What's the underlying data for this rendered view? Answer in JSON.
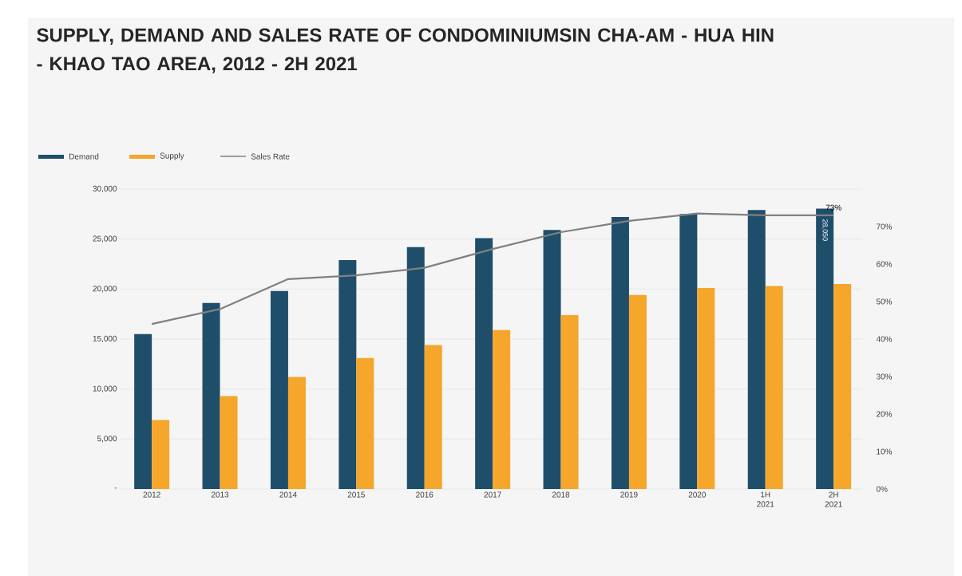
{
  "chart_data": {
    "type": "bar",
    "title": "SUPPLY, DEMAND AND SALES RATE OF CONDOMINIUMSIN CHA-AM - HUA HIN - KHAO TAO AREA, 2012 - 2H 2021",
    "categories": [
      "2012",
      "2013",
      "2014",
      "2015",
      "2016",
      "2017",
      "2018",
      "2019",
      "2020",
      "1H 2021",
      "2H 2021"
    ],
    "series": [
      {
        "name": "Demand",
        "color": "#1f4e6b",
        "values": [
          15500,
          18600,
          19800,
          22900,
          24200,
          25100,
          25900,
          27200,
          27500,
          27900,
          28050
        ],
        "value_labels": [
          null,
          null,
          null,
          null,
          null,
          null,
          null,
          null,
          null,
          null,
          "28,050"
        ]
      },
      {
        "name": "Supply",
        "color": "#f5a62b",
        "values": [
          6900,
          9300,
          11200,
          13100,
          14400,
          15900,
          17400,
          19400,
          20100,
          20300,
          20500
        ]
      },
      {
        "name": "Sales Rate",
        "type": "line",
        "axis": "y2",
        "color": "#808080",
        "values": [
          44,
          48,
          56,
          57,
          59,
          64,
          68.5,
          71.5,
          73.5,
          73,
          73
        ],
        "value_labels": [
          null,
          null,
          null,
          null,
          null,
          null,
          null,
          null,
          null,
          null,
          "73%"
        ]
      }
    ],
    "ylim": [
      0,
      30000
    ],
    "yticks": [
      {
        "value": 0,
        "label": "-"
      },
      {
        "value": 5000,
        "label": "5,000"
      },
      {
        "value": 10000,
        "label": "10,000"
      },
      {
        "value": 15000,
        "label": "15,000"
      },
      {
        "value": 20000,
        "label": "20,000"
      },
      {
        "value": 25000,
        "label": "25,000"
      },
      {
        "value": 30000,
        "label": "30,000"
      }
    ],
    "y2lim": [
      0,
      80
    ],
    "y2ticks": [
      {
        "value": 0,
        "label": "0%"
      },
      {
        "value": 10,
        "label": "10%"
      },
      {
        "value": 20,
        "label": "20%"
      },
      {
        "value": 30,
        "label": "30%"
      },
      {
        "value": 40,
        "label": "40%"
      },
      {
        "value": 50,
        "label": "50%"
      },
      {
        "value": 60,
        "label": "60%"
      },
      {
        "value": 70,
        "label": "70%"
      }
    ],
    "grid": "y",
    "legend": "top left"
  }
}
